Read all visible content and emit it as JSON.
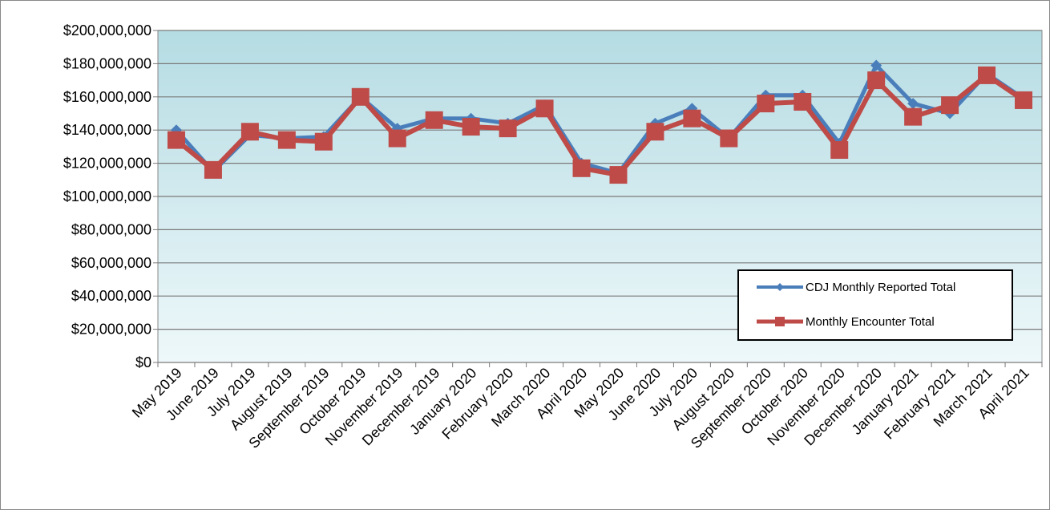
{
  "chart_data": {
    "type": "line",
    "categories": [
      "May 2019",
      "June 2019",
      "July 2019",
      "August 2019",
      "September 2019",
      "October 2019",
      "November 2019",
      "December 2019",
      "January 2020",
      "February 2020",
      "March 2020",
      "April 2020",
      "May 2020",
      "June 2020",
      "July 2020",
      "August 2020",
      "September 2020",
      "October 2020",
      "November 2020",
      "December 2020",
      "January 2021",
      "February 2021",
      "March 2021",
      "April 2021"
    ],
    "series": [
      {
        "name": "CDJ Monthly Reported Total",
        "color": "#4a7ebb",
        "values": [
          140000000,
          115000000,
          137000000,
          135000000,
          136000000,
          160000000,
          141000000,
          147000000,
          147000000,
          144000000,
          155000000,
          120000000,
          114000000,
          144000000,
          153000000,
          135000000,
          161000000,
          161000000,
          132000000,
          179000000,
          156000000,
          150000000,
          174000000,
          159000000
        ]
      },
      {
        "name": "Monthly Encounter Total",
        "color": "#be4b48",
        "values": [
          134000000,
          116000000,
          139000000,
          134000000,
          133000000,
          160000000,
          135000000,
          146000000,
          142000000,
          141000000,
          153000000,
          117000000,
          113000000,
          139000000,
          147000000,
          135000000,
          156000000,
          157000000,
          128000000,
          170000000,
          148000000,
          155000000,
          173000000,
          158000000
        ]
      }
    ],
    "ylim": [
      0,
      200000000
    ],
    "yticks": [
      {
        "value": 0,
        "label": "$0"
      },
      {
        "value": 20000000,
        "label": "$20,000,000"
      },
      {
        "value": 40000000,
        "label": "$40,000,000"
      },
      {
        "value": 60000000,
        "label": "$60,000,000"
      },
      {
        "value": 80000000,
        "label": "$80,000,000"
      },
      {
        "value": 100000000,
        "label": "$100,000,000"
      },
      {
        "value": 120000000,
        "label": "$120,000,000"
      },
      {
        "value": 140000000,
        "label": "$140,000,000"
      },
      {
        "value": 160000000,
        "label": "$160,000,000"
      },
      {
        "value": 180000000,
        "label": "$180,000,000"
      },
      {
        "value": 200000000,
        "label": "$200,000,000"
      }
    ],
    "grid": true
  }
}
